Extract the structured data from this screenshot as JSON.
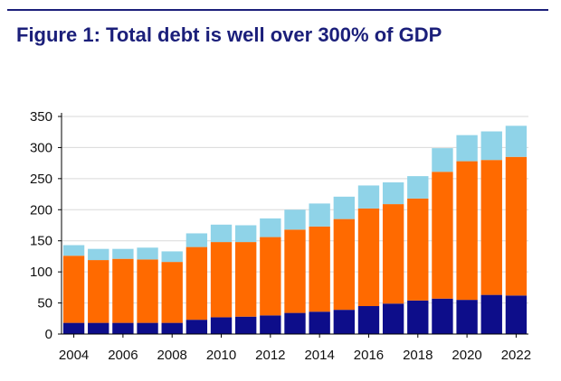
{
  "title": "Figure 1: Total debt is well over 300% of GDP",
  "colors": {
    "title": "#1b1f7a",
    "series_1": "#0d0d8a",
    "series_2": "#ff6a00",
    "series_3": "#8fd3e8",
    "grid": "#d9d9d9",
    "axis": "#000000"
  },
  "chart_data": {
    "type": "bar",
    "stacked": true,
    "title": "Figure 1: Total debt is well over 300% of GDP",
    "xlabel": "",
    "ylabel": "",
    "ylim": [
      0,
      350
    ],
    "yticks": [
      0,
      50,
      100,
      150,
      200,
      250,
      300,
      350
    ],
    "grid": true,
    "legend": "none",
    "categories": [
      "2004",
      "2005",
      "2006",
      "2007",
      "2008",
      "2009",
      "2010",
      "2011",
      "2012",
      "2013",
      "2014",
      "2015",
      "2016",
      "2017",
      "2018",
      "2019",
      "2020",
      "2021",
      "2022"
    ],
    "xtick_labels": [
      "2004",
      "2006",
      "2008",
      "2010",
      "2012",
      "2014",
      "2016",
      "2018",
      "2020",
      "2022"
    ],
    "series": [
      {
        "values": [
          18,
          18,
          18,
          18,
          18,
          23,
          27,
          28,
          30,
          34,
          36,
          39,
          45,
          49,
          54,
          57,
          55,
          63,
          62
        ]
      },
      {
        "values": [
          108,
          101,
          103,
          102,
          98,
          117,
          121,
          120,
          126,
          134,
          137,
          146,
          157,
          160,
          164,
          204,
          223,
          217,
          223
        ]
      },
      {
        "values": [
          17,
          18,
          16,
          19,
          17,
          22,
          28,
          27,
          30,
          32,
          37,
          36,
          37,
          35,
          36,
          38,
          42,
          46,
          50
        ]
      }
    ]
  }
}
